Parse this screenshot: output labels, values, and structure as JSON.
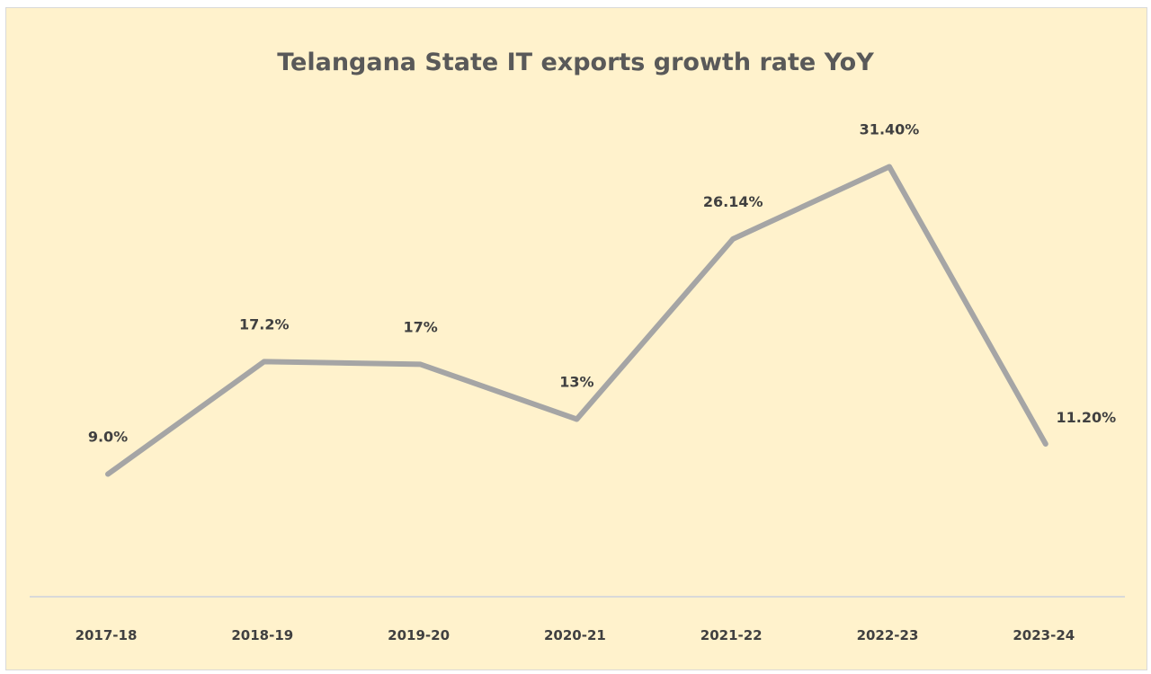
{
  "chart_data": {
    "type": "line",
    "title": "Telangana State IT exports growth rate YoY",
    "categories": [
      "2017-18",
      "2018-19",
      "2019-20",
      "2020-21",
      "2021-22",
      "2022-23",
      "2023-24"
    ],
    "values": [
      9.0,
      17.2,
      17,
      13,
      26.14,
      31.4,
      11.2
    ],
    "data_labels": [
      "9.0%",
      "17.2%",
      "17%",
      "13%",
      "26.14%",
      "31.40%",
      "11.20%"
    ],
    "ylim": [
      0,
      35
    ],
    "grid": false,
    "legend": "none",
    "colors": {
      "background": "#FFF2CC",
      "line": "#A5A5A5",
      "text": "#404040",
      "axis": "#D9D9D9"
    }
  }
}
